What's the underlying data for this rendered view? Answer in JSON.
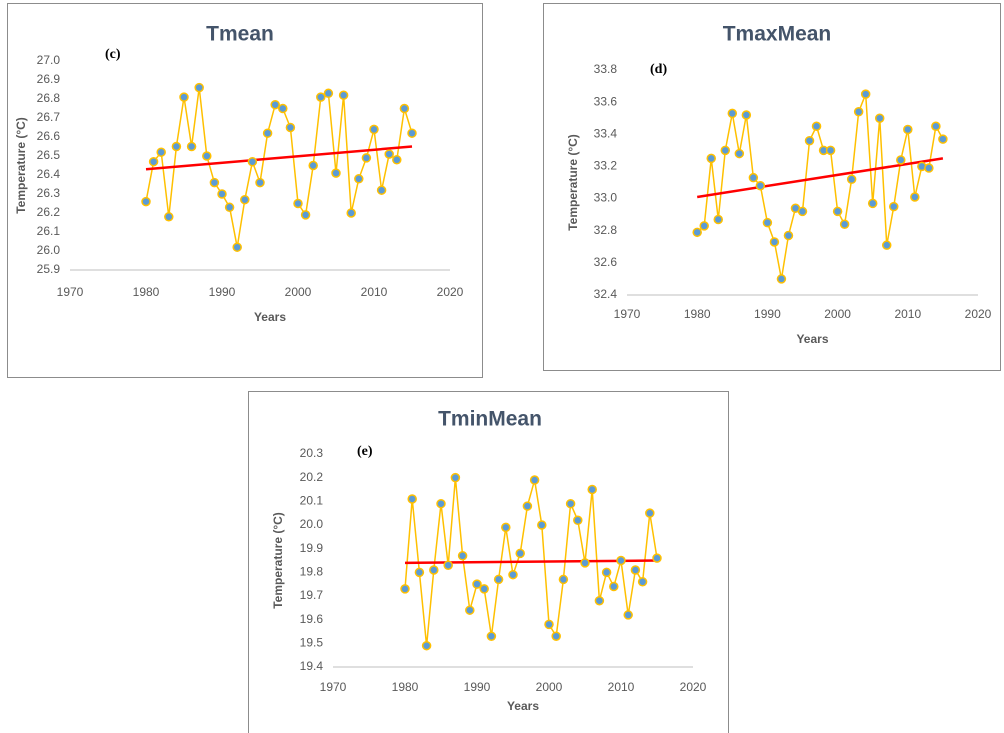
{
  "chart_data": [
    {
      "type": "line",
      "title": "Tmean",
      "panel_label": "(c)",
      "xlabel": "Years",
      "ylabel": "Temperature (°C)",
      "x": [
        1980,
        1981,
        1982,
        1983,
        1984,
        1985,
        1986,
        1987,
        1988,
        1989,
        1990,
        1991,
        1992,
        1993,
        1994,
        1995,
        1996,
        1997,
        1998,
        1999,
        2000,
        2001,
        2002,
        2003,
        2004,
        2005,
        2006,
        2007,
        2008,
        2009,
        2010,
        2011,
        2012,
        2013,
        2014,
        2015
      ],
      "values": [
        26.26,
        26.47,
        26.52,
        26.18,
        26.55,
        26.81,
        26.55,
        26.86,
        26.5,
        26.36,
        26.3,
        26.23,
        26.02,
        26.27,
        26.47,
        26.36,
        26.62,
        26.77,
        26.75,
        26.65,
        26.25,
        26.19,
        26.45,
        26.81,
        26.83,
        26.41,
        26.82,
        26.2,
        26.38,
        26.49,
        26.64,
        26.32,
        26.51,
        26.48,
        26.75,
        26.62
      ],
      "color": "#FFC000",
      "marker_color": "#5B9BD5",
      "trend": {
        "x": [
          1980,
          2015
        ],
        "values": [
          26.43,
          26.55
        ],
        "color": "#FF0000"
      },
      "xlim": [
        1970,
        2020
      ],
      "xticks": [
        1970,
        1980,
        1990,
        2000,
        2010,
        2020
      ],
      "ylim": [
        25.9,
        27.0
      ],
      "yticks": [
        25.9,
        {
          "value": 26,
          "label": "26.0"
        },
        26.1,
        26.2,
        26.3,
        26.4,
        26.5,
        26.6,
        26.7,
        26.8,
        26.9,
        {
          "value": 27,
          "label": "27.0"
        }
      ]
    },
    {
      "type": "line",
      "title": "TmaxMean",
      "panel_label": "(d)",
      "xlabel": "Years",
      "ylabel": "Temperature (°C)",
      "x": [
        1980,
        1981,
        1982,
        1983,
        1984,
        1985,
        1986,
        1987,
        1988,
        1989,
        1990,
        1991,
        1992,
        1993,
        1994,
        1995,
        1996,
        1997,
        1998,
        1999,
        2000,
        2001,
        2002,
        2003,
        2004,
        2005,
        2006,
        2007,
        2008,
        2009,
        2010,
        2011,
        2012,
        2013,
        2014,
        2015
      ],
      "values": [
        32.79,
        32.83,
        33.25,
        32.87,
        33.3,
        33.53,
        33.28,
        33.52,
        33.13,
        33.08,
        32.85,
        32.73,
        32.5,
        32.77,
        32.94,
        32.92,
        33.36,
        33.45,
        33.3,
        33.3,
        32.92,
        32.84,
        33.12,
        33.54,
        33.65,
        32.97,
        33.5,
        32.71,
        32.95,
        33.24,
        33.43,
        33.01,
        33.2,
        33.19,
        33.45,
        33.37
      ],
      "color": "#FFC000",
      "marker_color": "#5B9BD5",
      "trend": {
        "x": [
          1980,
          2015
        ],
        "values": [
          33.01,
          33.25
        ],
        "color": "#FF0000"
      },
      "xlim": [
        1970,
        2020
      ],
      "xticks": [
        1970,
        1980,
        1990,
        2000,
        2010,
        2020
      ],
      "ylim": [
        32.4,
        33.8
      ],
      "yticks": [
        32.4,
        32.6,
        32.8,
        {
          "value": 33,
          "label": "33.0"
        },
        33.2,
        33.4,
        33.6,
        33.8
      ]
    },
    {
      "type": "line",
      "title": "TminMean",
      "panel_label": "(e)",
      "xlabel": "Years",
      "ylabel": "Temperature (°C)",
      "x": [
        1980,
        1981,
        1982,
        1983,
        1984,
        1985,
        1986,
        1987,
        1988,
        1989,
        1990,
        1991,
        1992,
        1993,
        1994,
        1995,
        1996,
        1997,
        1998,
        1999,
        2000,
        2001,
        2002,
        2003,
        2004,
        2005,
        2006,
        2007,
        2008,
        2009,
        2010,
        2011,
        2012,
        2013,
        2014,
        2015
      ],
      "values": [
        19.73,
        20.11,
        19.8,
        19.49,
        19.81,
        20.09,
        19.83,
        20.2,
        19.87,
        19.64,
        19.75,
        19.73,
        19.53,
        19.77,
        19.99,
        19.79,
        19.88,
        20.08,
        20.19,
        20.0,
        19.58,
        19.53,
        19.77,
        20.09,
        20.02,
        19.84,
        20.15,
        19.68,
        19.8,
        19.74,
        19.85,
        19.62,
        19.81,
        19.76,
        20.05,
        19.86
      ],
      "color": "#FFC000",
      "marker_color": "#5B9BD5",
      "trend": {
        "x": [
          1980,
          2015
        ],
        "values": [
          19.84,
          19.85
        ],
        "color": "#FF0000"
      },
      "xlim": [
        1970,
        2020
      ],
      "xticks": [
        1970,
        1980,
        1990,
        2000,
        2010,
        2020
      ],
      "ylim": [
        19.4,
        20.3
      ],
      "yticks": [
        19.4,
        19.5,
        19.6,
        19.7,
        19.8,
        19.9,
        {
          "value": 20,
          "label": "20.0"
        },
        20.1,
        20.2,
        20.3
      ]
    }
  ]
}
